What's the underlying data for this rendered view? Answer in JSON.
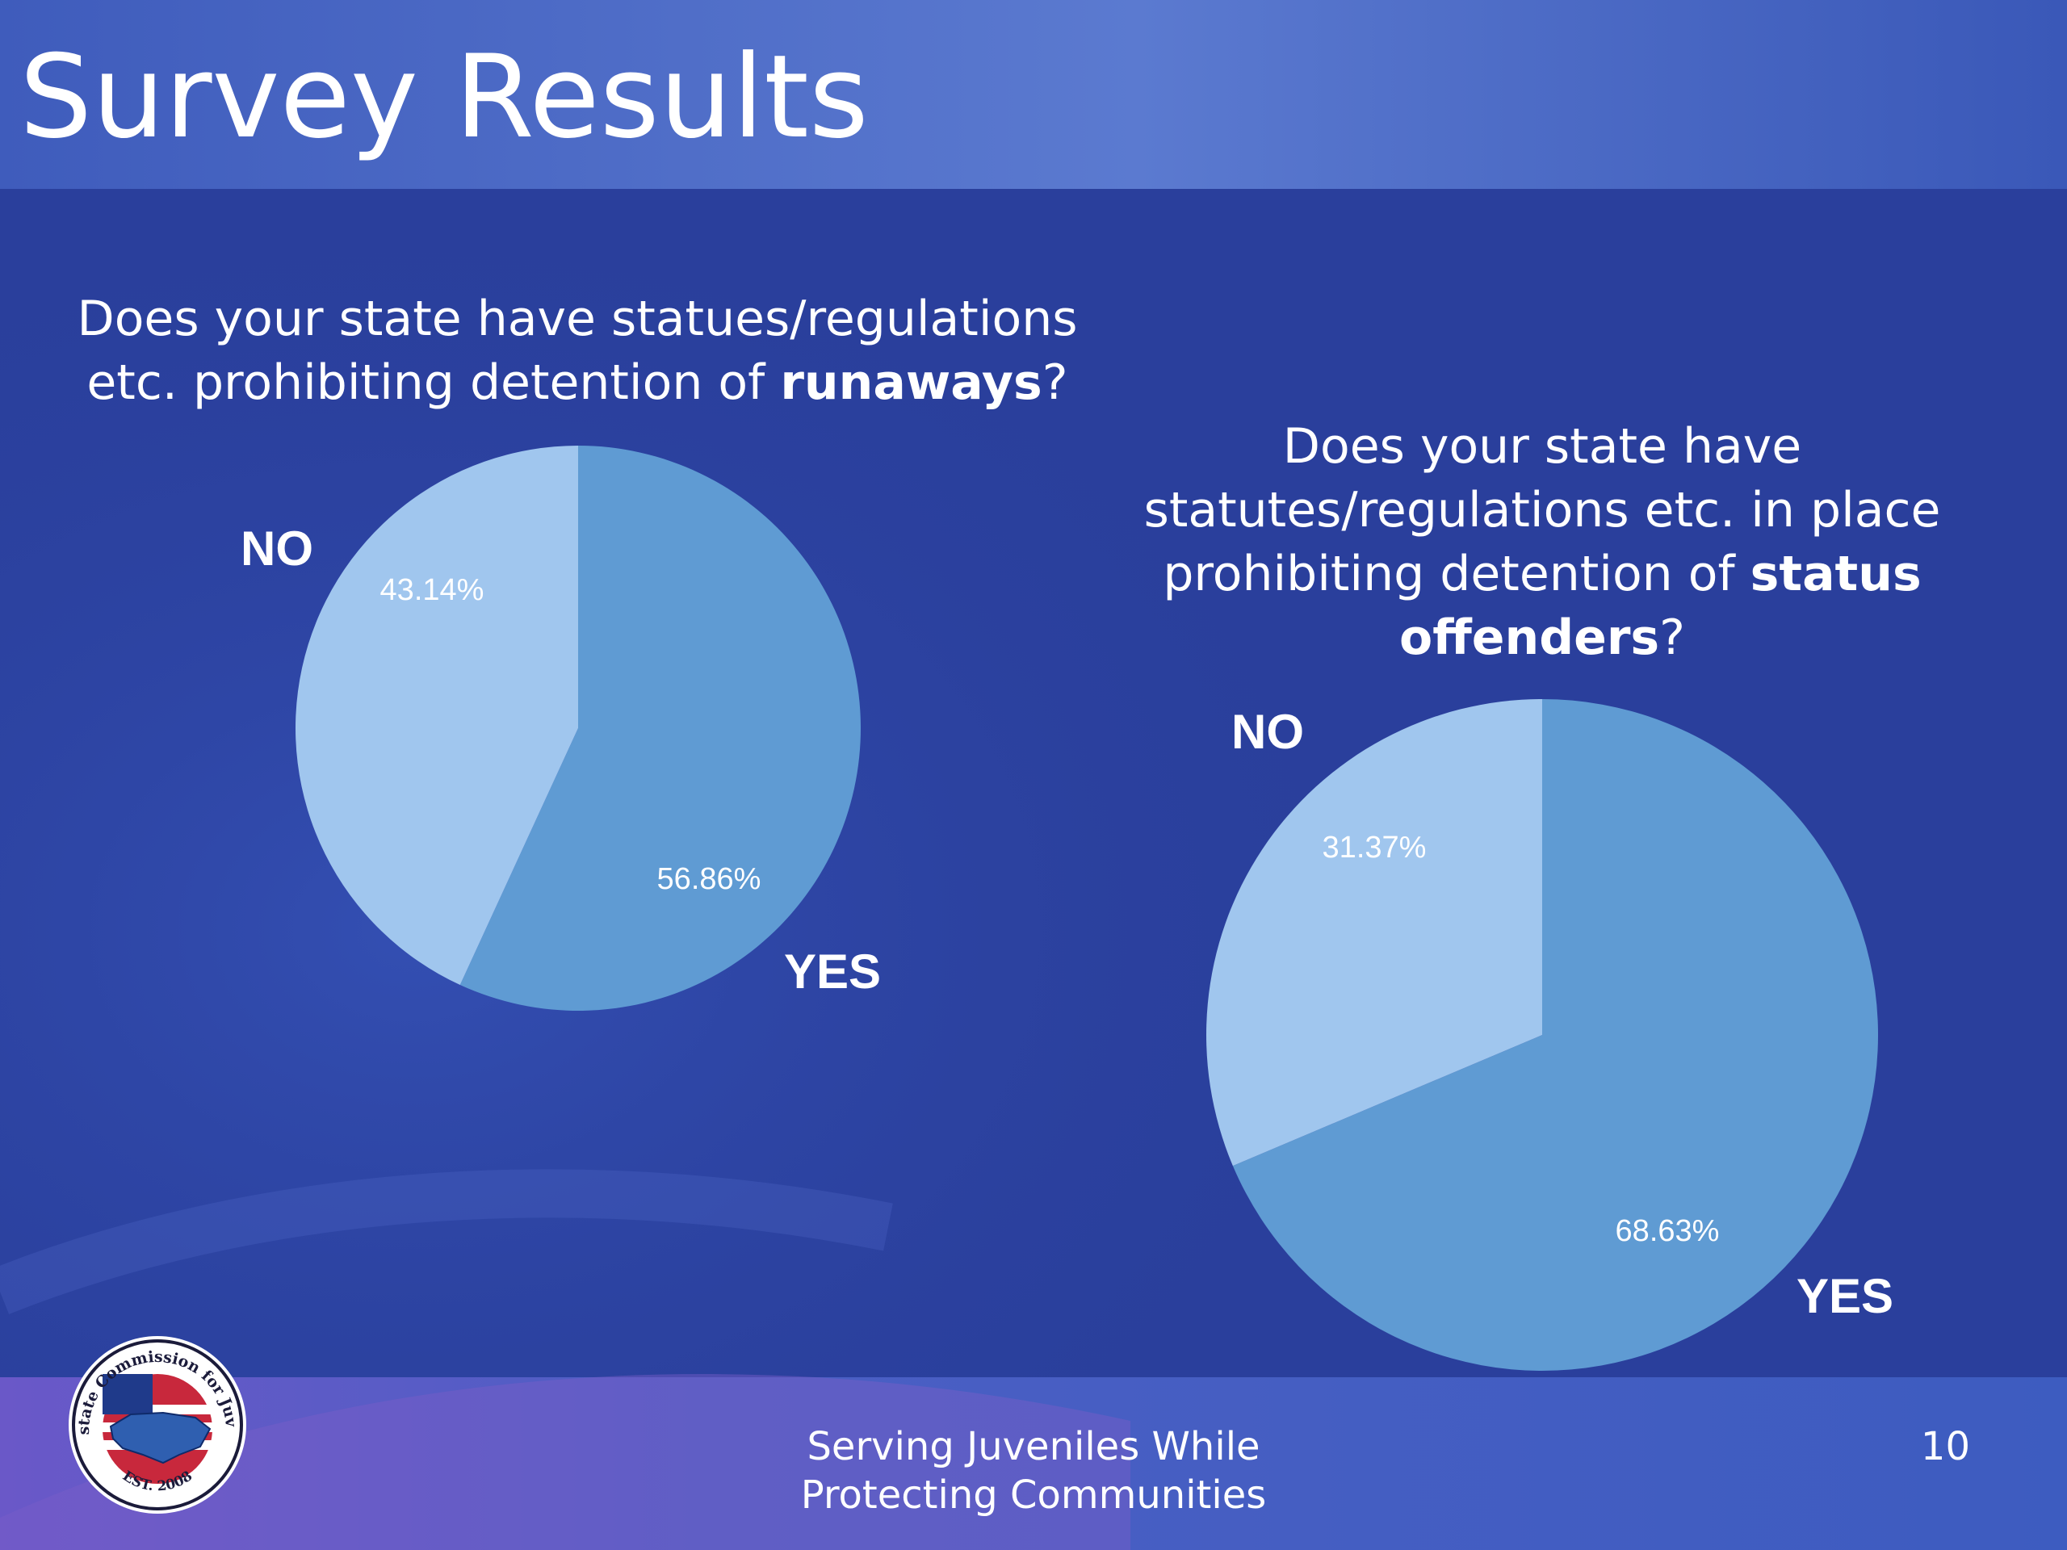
{
  "slide": {
    "title": "Survey Results",
    "footer_line1": "Serving Juveniles While",
    "footer_line2": "Protecting Communities",
    "page_number": "10"
  },
  "logo": {
    "text_top": "Interstate Commission for Juveniles",
    "text_bottom": "EST. 2008"
  },
  "colors": {
    "background": "#2a3f9c",
    "header_band": "#4c6cc4",
    "yes_slice": "#5f9bd3",
    "no_slice": "#a0c6ee",
    "text": "#ffffff"
  },
  "questions": [
    {
      "prefix": "Does your state have statues/regulations etc. prohibiting detention of ",
      "emphasis": "runaways",
      "suffix": "?"
    },
    {
      "prefix": "Does your state have statutes/regulations etc. in place prohibiting detention of ",
      "emphasis": "status offenders",
      "suffix": "?"
    }
  ],
  "chart_data": [
    {
      "type": "pie",
      "categories": [
        "YES",
        "NO"
      ],
      "values": [
        56.86,
        43.14
      ],
      "data_labels": [
        "56.86%",
        "43.14%"
      ],
      "colors": [
        "#5f9bd3",
        "#a0c6ee"
      ]
    },
    {
      "type": "pie",
      "categories": [
        "YES",
        "NO"
      ],
      "values": [
        68.63,
        31.37
      ],
      "data_labels": [
        "68.63%",
        "31.37%"
      ],
      "colors": [
        "#5f9bd3",
        "#a0c6ee"
      ]
    }
  ]
}
